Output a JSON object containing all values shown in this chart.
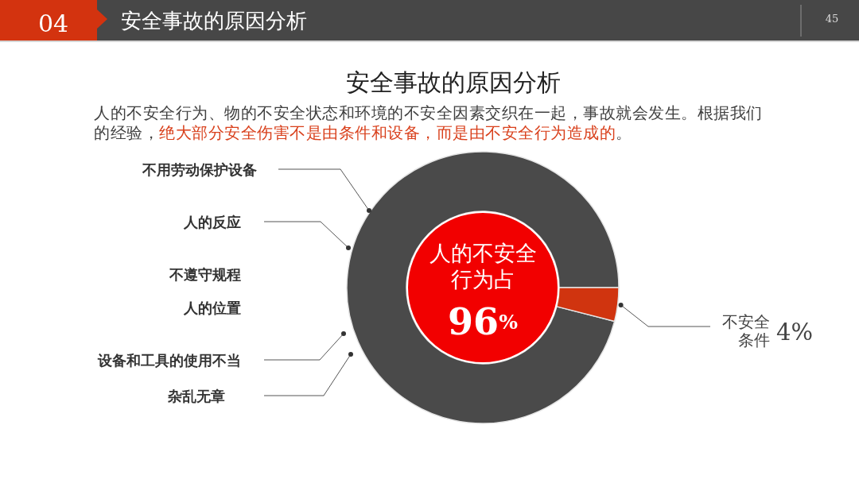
{
  "chart_data": {
    "type": "donut",
    "title": "安全事故的原因分析",
    "subtitle": "人的不安全行为、物的不安全状态和环境的不安全因素交织在一起，事故就会发生。根据我们的经验，**绝大部分安全伤害不是由条件和设备，而是由不安全行为造成的**。",
    "categories": [
      "人的不安全行为占",
      "不安全条件"
    ],
    "values": [
      96,
      4
    ],
    "colors": [
      "#4a4a4a",
      "#d0340f"
    ],
    "value_labels": [
      "96%",
      "4%"
    ],
    "annotations": [
      "04",
      "安全事故的原因分析",
      "45",
      "不用劳动保护设备",
      "人的反应",
      "不遵守规程",
      "人的位置",
      "设备和工具的使用不当",
      "杂乱无章"
    ]
  }
}
